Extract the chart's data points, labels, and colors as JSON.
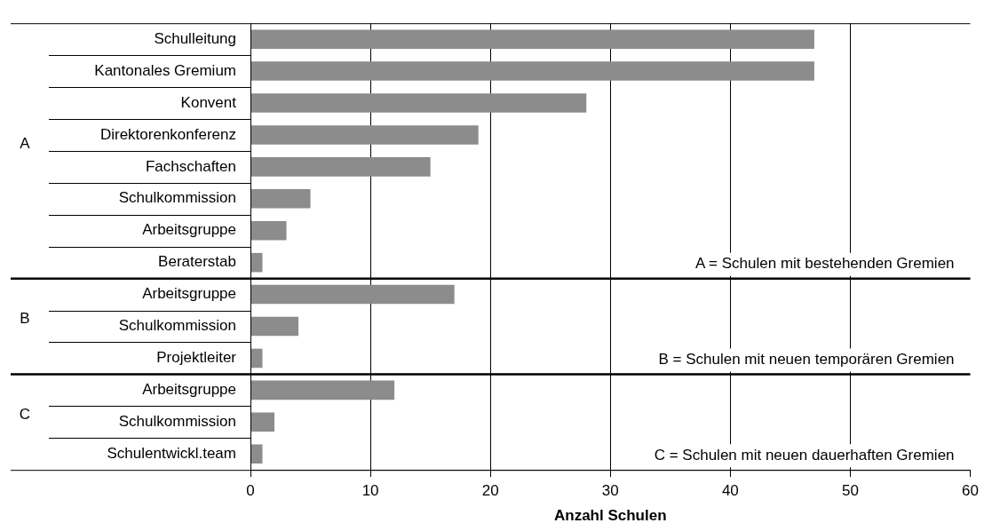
{
  "chart_data": {
    "type": "bar",
    "orientation": "horizontal",
    "stacked": true,
    "categories": [
      "Schulleitung",
      "Kantonales Gremium",
      "Konvent",
      "Direktorenkonferenz",
      "Fachschaften",
      "Schulkommission",
      "Arbeitsgruppe",
      "Beraterstab",
      "Arbeitsgruppe",
      "Schulkommission",
      "Projektleiter",
      "Arbeitsgruppe",
      "Schulkommission",
      "Schulentwickl.team"
    ],
    "series": [
      {
        "name": "A",
        "color": "#8c8c8c",
        "values": [
          47,
          47,
          28,
          19,
          15,
          5,
          3,
          1,
          null,
          null,
          null,
          null,
          null,
          null
        ]
      },
      {
        "name": "B",
        "color": "#8c8c8c",
        "values": [
          null,
          null,
          null,
          null,
          null,
          null,
          null,
          null,
          17,
          4,
          1,
          null,
          null,
          null
        ]
      },
      {
        "name": "C",
        "color": "#8c8c8c",
        "values": [
          null,
          null,
          null,
          null,
          null,
          null,
          null,
          null,
          null,
          null,
          null,
          12,
          2,
          1
        ]
      }
    ],
    "xlabel": "Anzahl Schulen",
    "xlim": [
      0,
      60
    ],
    "xticks": [
      0,
      10,
      20,
      30,
      40,
      50,
      60
    ],
    "grid": "x",
    "legend": false,
    "annotations": [
      "A = Schulen mit bestehenden Gremien",
      "B = Schulen mit neuen temporären Gremien",
      "C = Schulen mit neuen dauerhaften Gremien"
    ]
  }
}
